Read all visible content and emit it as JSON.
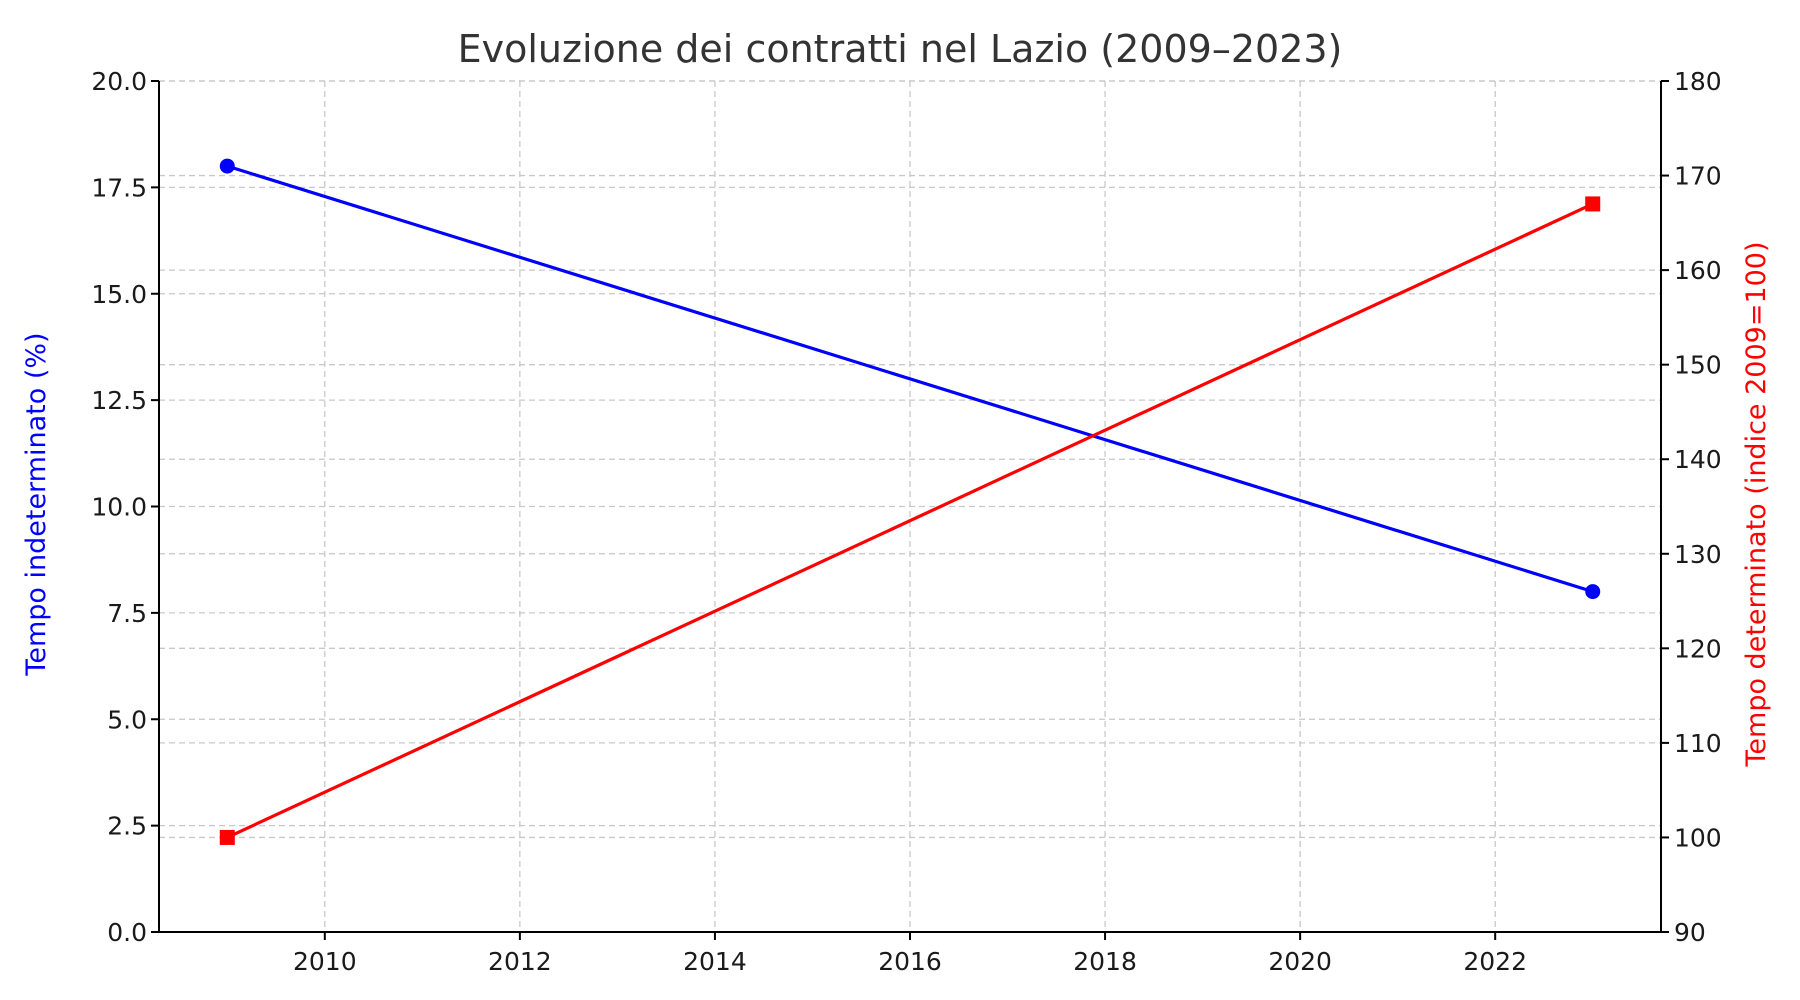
{
  "chart_data": {
    "type": "line",
    "title": "Evoluzione dei contratti nel Lazio (2009–2023)",
    "xlabel": "",
    "x_ticks": [
      2010,
      2012,
      2014,
      2016,
      2018,
      2020,
      2022
    ],
    "xlim": [
      2008.3,
      2023.7
    ],
    "y_left": {
      "label": "Tempo indeterminato (%)",
      "ylim": [
        0,
        20
      ],
      "ticks": [
        "0.0",
        "2.5",
        "5.0",
        "7.5",
        "10.0",
        "12.5",
        "15.0",
        "17.5",
        "20.0"
      ],
      "color": "#0000ff"
    },
    "y_right": {
      "label": "Tempo determinato (indice 2009=100)",
      "ylim": [
        90,
        180
      ],
      "ticks": [
        "90",
        "100",
        "110",
        "120",
        "130",
        "140",
        "150",
        "160",
        "170",
        "180"
      ],
      "color": "#ff0000"
    },
    "grid": true,
    "series": [
      {
        "axis": "left",
        "color": "#0000ff",
        "marker": "circle",
        "x": [
          2009,
          2023
        ],
        "values": [
          18.0,
          8.0
        ]
      },
      {
        "axis": "right",
        "color": "#ff0000",
        "marker": "square",
        "x": [
          2009,
          2023
        ],
        "values": [
          100,
          167
        ]
      }
    ]
  }
}
